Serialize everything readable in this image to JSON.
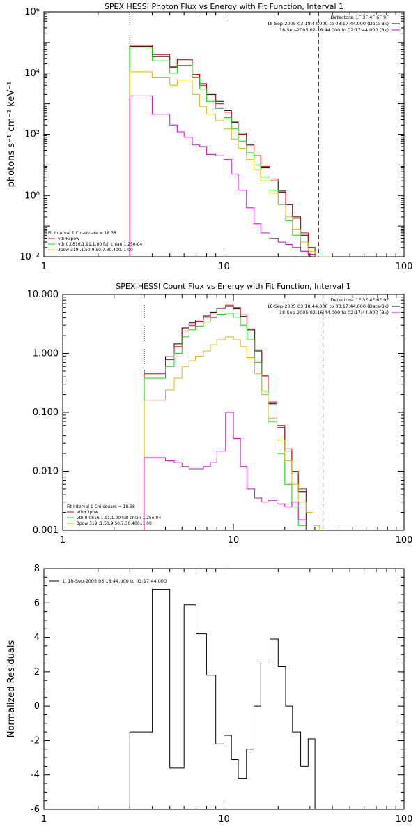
{
  "chart_data": [
    {
      "type": "line",
      "title": "SPEX HESSI Photon Flux vs Energy with Fit Function, Interval 1",
      "xlabel": "",
      "ylabel": "photons s⁻¹ cm⁻² keV⁻¹",
      "xscale": "log",
      "yscale": "log",
      "xlim": [
        1,
        100
      ],
      "ylim": [
        0.01,
        1000000
      ],
      "xticks": [
        1,
        10,
        100
      ],
      "xtick_labels": [
        "1",
        "10",
        "100"
      ],
      "yticks": [
        0.01,
        1,
        100,
        10000,
        1000000
      ],
      "ytick_labels": [
        "10⁻²",
        "10⁰",
        "10²",
        "10⁴",
        "10⁶"
      ],
      "vlines": [
        {
          "x": 3.0,
          "style": "dotted"
        },
        {
          "x": 33.5,
          "style": "dashed"
        }
      ],
      "legend_top_right": [
        "Detectors: 1F 3F 4F 6F 9F",
        "18-Sep-2005 03:18:44.000 to 03:17:44.000 (Data-Bk)",
        "18-Sep-2005 02:16:44.000 to 02:17:44.000 (Bk)"
      ],
      "legend_top_right_colors": [
        "#000000",
        "#000000",
        "#dd00dd"
      ],
      "legend_bottom_left": [
        "Fit Interval 1   Chi-square = 18.38",
        "vth+3pow",
        "vth 0.0816,1.91,1.00  full chian 1.25e-04",
        "3pow 319.,1.50,9.50,7.30,400.,1.00"
      ],
      "legend_bottom_left_colors": [
        "#000000",
        "#dd0000",
        "#00dd00",
        "#ddbb00"
      ],
      "edges": [
        3.0,
        3.33,
        3.67,
        4.0,
        4.5,
        5.0,
        5.5,
        6.0,
        6.67,
        7.33,
        8.0,
        9.0,
        10.0,
        11.0,
        12.0,
        13.33,
        14.67,
        16.0,
        18.0,
        20.0,
        22.0,
        24.0,
        26.67,
        29.33,
        32.0,
        36.0,
        40.0,
        44.0
      ],
      "series": [
        {
          "name": "Data-Bk",
          "color": "#000000",
          "values": [
            75000,
            75000,
            75000,
            35000,
            35000,
            15000,
            28000,
            28000,
            9000,
            4500,
            2000,
            1200,
            600,
            250,
            110,
            45,
            20,
            8,
            3,
            1.3,
            0.5,
            0.2,
            0.05,
            0.02,
            0.01,
            null,
            null
          ]
        },
        {
          "name": "vth+3pow",
          "color": "#dd0000",
          "values": [
            82000,
            82000,
            82000,
            40000,
            40000,
            16000,
            25000,
            25000,
            9000,
            4000,
            1800,
            1000,
            530,
            240,
            100,
            45,
            20,
            9,
            3.5,
            1.4,
            0.5,
            0.18,
            0.06,
            0.02,
            null,
            null,
            null
          ]
        },
        {
          "name": "vth",
          "color": "#00dd00",
          "values": [
            70000,
            70000,
            70000,
            25000,
            25000,
            10000,
            18000,
            18000,
            7000,
            3000,
            1200,
            700,
            350,
            150,
            60,
            25,
            10,
            4,
            1.5,
            0.5,
            0.15,
            0.05,
            0.015,
            null,
            null,
            null,
            null
          ]
        },
        {
          "name": "3pow",
          "color": "#ddbb00",
          "values": [
            11000,
            11000,
            11000,
            7000,
            7000,
            4000,
            6000,
            6000,
            2000,
            800,
            450,
            280,
            150,
            70,
            35,
            15,
            7,
            3,
            1.2,
            0.5,
            0.2,
            0.08,
            0.03,
            0.015,
            0.01,
            0.01,
            null
          ]
        },
        {
          "name": "Bk",
          "color": "#dd00dd",
          "values": [
            1800,
            1800,
            1800,
            450,
            450,
            200,
            120,
            80,
            45,
            40,
            22,
            20,
            15,
            5,
            1.5,
            0.4,
            0.12,
            0.06,
            0.04,
            0.03,
            0.025,
            0.02,
            0.015,
            0.012,
            null,
            null,
            null
          ]
        }
      ]
    },
    {
      "type": "line",
      "title": "SPEX HESSI Count Flux vs Energy with Fit Function, Interval 1",
      "xlabel": "",
      "ylabel": "",
      "xscale": "log",
      "yscale": "log",
      "xlim": [
        1,
        100
      ],
      "ylim": [
        0.001,
        10
      ],
      "xticks": [
        1,
        10,
        100
      ],
      "xtick_labels": [
        "1",
        "10",
        "100"
      ],
      "yticks": [
        0.001,
        0.01,
        0.1,
        1,
        10
      ],
      "ytick_labels": [
        "0.001",
        "0.010",
        "0.100",
        "1.000",
        "10.000"
      ],
      "vlines": [
        {
          "x": 3.0,
          "style": "dotted"
        },
        {
          "x": 33.5,
          "style": "dashed"
        }
      ],
      "legend_top_right": [
        "Detectors: 1F 3F 4F 6F 9F",
        "18-Sep-2005 03:18:44.000 to 03:17:44.000 (Data-Bk)",
        "18-Sep-2005 02:16:44.000 to 02:17:44.000 (Bk)"
      ],
      "legend_top_right_colors": [
        "#000000",
        "#000000",
        "#dd00dd"
      ],
      "legend_bottom_left": [
        "Fit Interval 1   Chi-square = 18.38",
        "vth+3pow",
        "vth 0.0816,1.91,1.00  full chian 1.25e-04",
        "3pow 319.,1.50,9.50,7.30,400.,1.00"
      ],
      "legend_bottom_left_colors": [
        "#000000",
        "#dd0000",
        "#00dd00",
        "#ddbb00"
      ],
      "edges": [
        3.0,
        3.33,
        3.67,
        4.0,
        4.5,
        5.0,
        5.5,
        6.0,
        6.67,
        7.33,
        8.0,
        9.0,
        10.0,
        11.0,
        12.0,
        13.33,
        14.67,
        16.0,
        18.0,
        20.0,
        22.0,
        24.0,
        26.67,
        29.33,
        32.0,
        36.0,
        40.0,
        44.0
      ],
      "series": [
        {
          "name": "Data-Bk",
          "color": "#000000",
          "values": [
            0.52,
            0.52,
            0.52,
            0.88,
            1.45,
            2.7,
            3.3,
            3.7,
            4.3,
            5.0,
            5.8,
            6.3,
            5.7,
            4.2,
            2.5,
            1.1,
            0.4,
            0.14,
            0.055,
            0.022,
            0.009,
            0.0045,
            null,
            null,
            null,
            null,
            null
          ]
        },
        {
          "name": "vth+3pow",
          "color": "#dd0000",
          "values": [
            0.45,
            0.45,
            0.45,
            0.78,
            1.3,
            2.4,
            3.0,
            3.5,
            4.1,
            4.9,
            5.9,
            6.6,
            6.0,
            4.5,
            2.6,
            1.15,
            0.42,
            0.15,
            0.06,
            0.024,
            0.01,
            0.005,
            null,
            null,
            null,
            null,
            null
          ]
        },
        {
          "name": "vth",
          "color": "#00dd00",
          "values": [
            0.38,
            0.38,
            0.38,
            0.6,
            1.0,
            1.9,
            2.5,
            2.9,
            3.4,
            4.0,
            4.6,
            4.8,
            4.1,
            3.0,
            1.7,
            0.7,
            0.23,
            0.07,
            0.02,
            0.006,
            0.0025,
            0.0012,
            null,
            null,
            null,
            null,
            null
          ]
        },
        {
          "name": "3pow",
          "color": "#ddbb00",
          "values": [
            0.16,
            0.16,
            0.16,
            0.24,
            0.38,
            0.6,
            0.75,
            0.9,
            1.1,
            1.4,
            1.7,
            1.9,
            1.7,
            1.3,
            0.85,
            0.45,
            0.2,
            0.08,
            0.034,
            0.015,
            0.006,
            0.003,
            0.002,
            0.0012,
            null,
            null,
            null
          ]
        },
        {
          "name": "Bk",
          "color": "#dd00dd",
          "values": [
            0.017,
            0.017,
            0.017,
            0.015,
            0.014,
            0.012,
            0.011,
            0.011,
            0.012,
            0.014,
            0.022,
            0.1,
            0.036,
            0.012,
            0.005,
            0.0035,
            0.003,
            0.0032,
            0.0028,
            0.0025,
            0.003,
            0.0015,
            null,
            null,
            null,
            null,
            null
          ]
        }
      ]
    },
    {
      "type": "line",
      "title": "",
      "xlabel": "",
      "ylabel": "Normalized Residuals",
      "xscale": "log",
      "yscale": "linear",
      "xlim": [
        1,
        100
      ],
      "ylim": [
        -6,
        8
      ],
      "xticks": [
        1,
        10,
        100
      ],
      "xtick_labels": [
        "1",
        "10",
        "100"
      ],
      "yticks": [
        -6,
        -4,
        -2,
        0,
        2,
        4,
        6,
        8
      ],
      "ytick_labels": [
        "-6",
        "-4",
        "-2",
        "0",
        "2",
        "4",
        "6",
        "8"
      ],
      "legend_top_left": [
        "1. 18-Sep-2005 03:18:44.000 to 03:17:44.000"
      ],
      "edges": [
        3.0,
        4.0,
        5.0,
        6.0,
        7.0,
        8.0,
        9.0,
        10.0,
        11.0,
        12.0,
        13.33,
        14.67,
        16.0,
        18.0,
        20.0,
        22.0,
        24.0,
        26.67,
        29.33,
        32.0,
        34.0
      ],
      "series": [
        {
          "name": "1. 18-Sep-2005 03:18:44.000 to 03:17:44.000",
          "color": "#000000",
          "values": [
            -1.5,
            6.8,
            -3.6,
            5.9,
            4.2,
            1.8,
            -2.2,
            -1.7,
            -3.1,
            -4.2,
            -2.5,
            0.0,
            2.5,
            3.9,
            2.3,
            0.0,
            -1.5,
            -3.5,
            -1.9,
            -6.0
          ]
        }
      ]
    }
  ]
}
